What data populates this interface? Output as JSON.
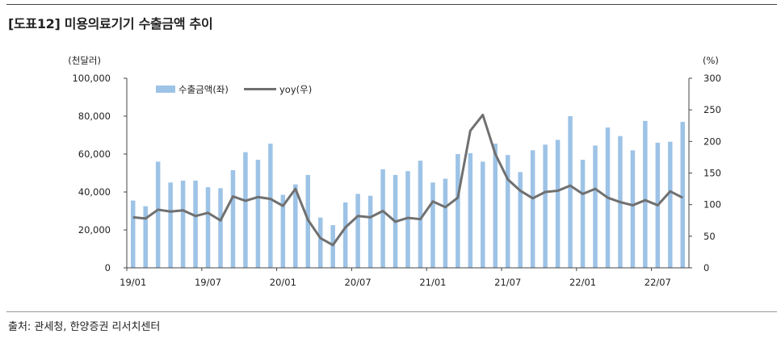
{
  "title": "[도표12] 미용의료기기 수출금액 추이",
  "source": "출처: 관세청, 한양증권 리서치센터",
  "chart_data": {
    "type": "bar+line",
    "title": "[도표12] 미용의료기기 수출금액 추이",
    "left_unit": "(천달러)",
    "right_unit": "(%)",
    "left_ylim": [
      0,
      100000
    ],
    "right_ylim": [
      0,
      300
    ],
    "left_ticks": [
      "0",
      "20,000",
      "40,000",
      "60,000",
      "80,000",
      "100,000"
    ],
    "right_ticks": [
      "0",
      "50",
      "100",
      "150",
      "200",
      "250",
      "300"
    ],
    "x_tick_labels": [
      "19/01",
      "19/07",
      "20/01",
      "20/07",
      "21/01",
      "21/07",
      "22/01",
      "22/07"
    ],
    "categories": [
      "19/01",
      "19/02",
      "19/03",
      "19/04",
      "19/05",
      "19/06",
      "19/07",
      "19/08",
      "19/09",
      "19/10",
      "19/11",
      "19/12",
      "20/01",
      "20/02",
      "20/03",
      "20/04",
      "20/05",
      "20/06",
      "20/07",
      "20/08",
      "20/09",
      "20/10",
      "20/11",
      "20/12",
      "21/01",
      "21/02",
      "21/03",
      "21/04",
      "21/05",
      "21/06",
      "21/07",
      "21/08",
      "21/09",
      "21/10",
      "21/11",
      "21/12",
      "22/01",
      "22/02",
      "22/03",
      "22/04",
      "22/05",
      "22/06",
      "22/07",
      "22/08",
      "22/09"
    ],
    "series": [
      {
        "name": "수출금액(좌)",
        "type": "bar",
        "axis": "left",
        "color": "#9dc3e6",
        "values": [
          35500,
          32500,
          56000,
          45000,
          46000,
          46000,
          42500,
          42000,
          51500,
          61000,
          57000,
          65500,
          38500,
          44000,
          49000,
          26500,
          22500,
          34500,
          39000,
          38000,
          52000,
          49000,
          51000,
          56500,
          45000,
          47000,
          60000,
          60500,
          56000,
          65500,
          59500,
          50500,
          62000,
          65000,
          67500,
          80000,
          57000,
          64500,
          74000,
          69500,
          62000,
          77500,
          66000,
          66500,
          77000
        ]
      },
      {
        "name": "yoy(우)",
        "type": "line",
        "axis": "right",
        "color": "#707070",
        "values": [
          80,
          78,
          92,
          89,
          91,
          82,
          87,
          75,
          113,
          106,
          112,
          109,
          98,
          125,
          76,
          47,
          36,
          64,
          82,
          80,
          90,
          73,
          79,
          77,
          105,
          96,
          111,
          217,
          242,
          180,
          140,
          122,
          110,
          120,
          122,
          130,
          117,
          125,
          111,
          104,
          99,
          107,
          99,
          121,
          111
        ]
      }
    ],
    "legend_position": "top-left"
  }
}
